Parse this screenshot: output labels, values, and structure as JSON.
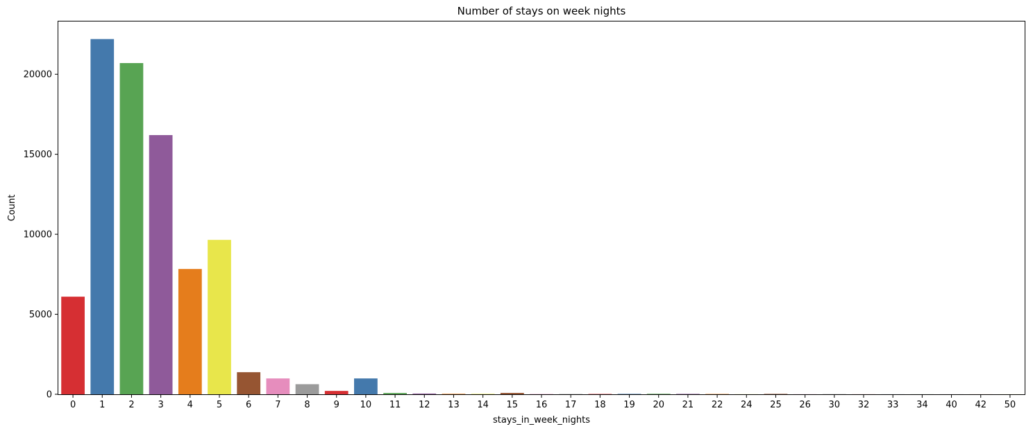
{
  "chart_data": {
    "type": "bar",
    "title": "Number of stays on week nights",
    "xlabel": "stays_in_week_nights",
    "ylabel": "Count",
    "ylim": [
      0,
      23300
    ],
    "yticks": [
      0,
      5000,
      10000,
      15000,
      20000
    ],
    "grid": false,
    "legend": "none",
    "categories": [
      "0",
      "1",
      "2",
      "3",
      "4",
      "5",
      "6",
      "7",
      "8",
      "9",
      "10",
      "11",
      "12",
      "13",
      "14",
      "15",
      "16",
      "17",
      "18",
      "19",
      "20",
      "21",
      "22",
      "24",
      "25",
      "26",
      "30",
      "32",
      "33",
      "34",
      "40",
      "42",
      "50"
    ],
    "values": [
      6100,
      22200,
      20700,
      16200,
      7830,
      9650,
      1380,
      990,
      630,
      210,
      990,
      80,
      45,
      30,
      25,
      85,
      15,
      15,
      20,
      25,
      30,
      25,
      20,
      5,
      25,
      5,
      10,
      3,
      2,
      2,
      2,
      2,
      2
    ],
    "colors": [
      "#d62f33",
      "#4479ac",
      "#58a453",
      "#8f5a9a",
      "#e57d1c",
      "#e8e64b",
      "#965532",
      "#e68dbd",
      "#9b9b9b"
    ]
  }
}
